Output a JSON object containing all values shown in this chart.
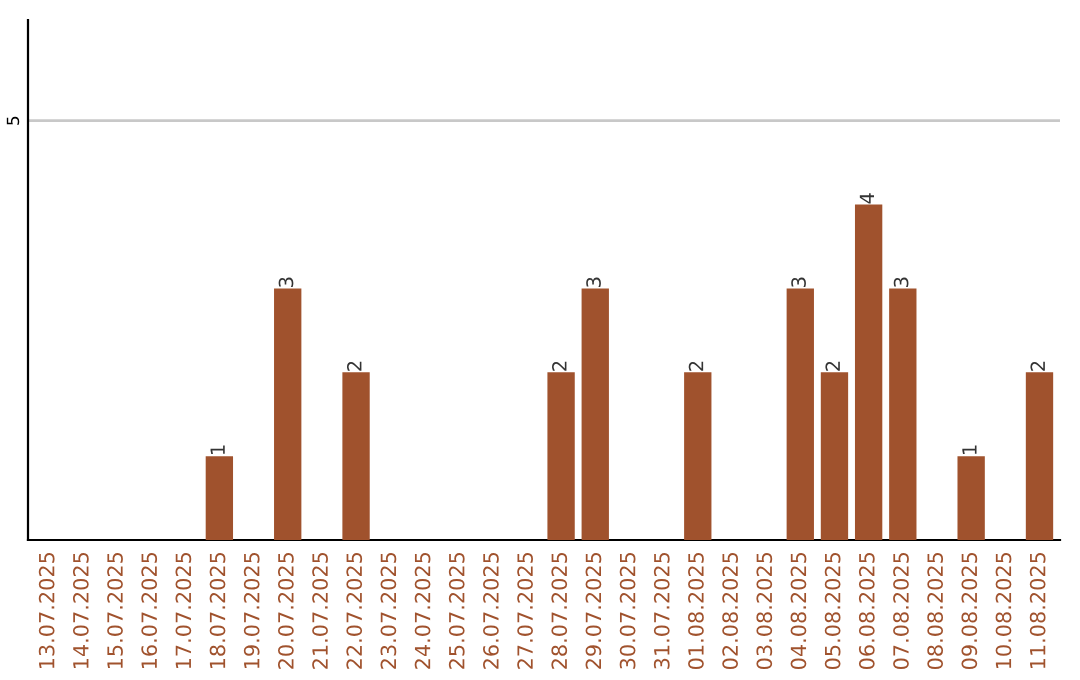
{
  "chart_data": {
    "type": "bar",
    "categories": [
      "13.07.2025",
      "14.07.2025",
      "15.07.2025",
      "16.07.2025",
      "17.07.2025",
      "18.07.2025",
      "19.07.2025",
      "20.07.2025",
      "21.07.2025",
      "22.07.2025",
      "23.07.2025",
      "24.07.2025",
      "25.07.2025",
      "26.07.2025",
      "27.07.2025",
      "28.07.2025",
      "29.07.2025",
      "30.07.2025",
      "31.07.2025",
      "01.08.2025",
      "02.08.2025",
      "03.08.2025",
      "04.08.2025",
      "05.08.2025",
      "06.08.2025",
      "07.08.2025",
      "08.08.2025",
      "09.08.2025",
      "10.08.2025",
      "11.08.2025"
    ],
    "values": [
      0,
      0,
      0,
      0,
      0,
      1,
      0,
      3,
      0,
      2,
      0,
      0,
      0,
      0,
      0,
      2,
      3,
      0,
      0,
      2,
      0,
      0,
      3,
      2,
      4,
      3,
      0,
      1,
      0,
      2
    ],
    "value_labels": [
      null,
      null,
      null,
      null,
      null,
      "1",
      null,
      "3",
      null,
      "2",
      null,
      null,
      null,
      null,
      null,
      "2",
      "3",
      null,
      null,
      "2",
      null,
      null,
      "3",
      "2",
      "4",
      "3",
      null,
      "1",
      null,
      "2"
    ],
    "color": "#a0522d",
    "ylim": [
      0,
      6.2
    ],
    "yticks": [
      5
    ],
    "grid": "y"
  }
}
